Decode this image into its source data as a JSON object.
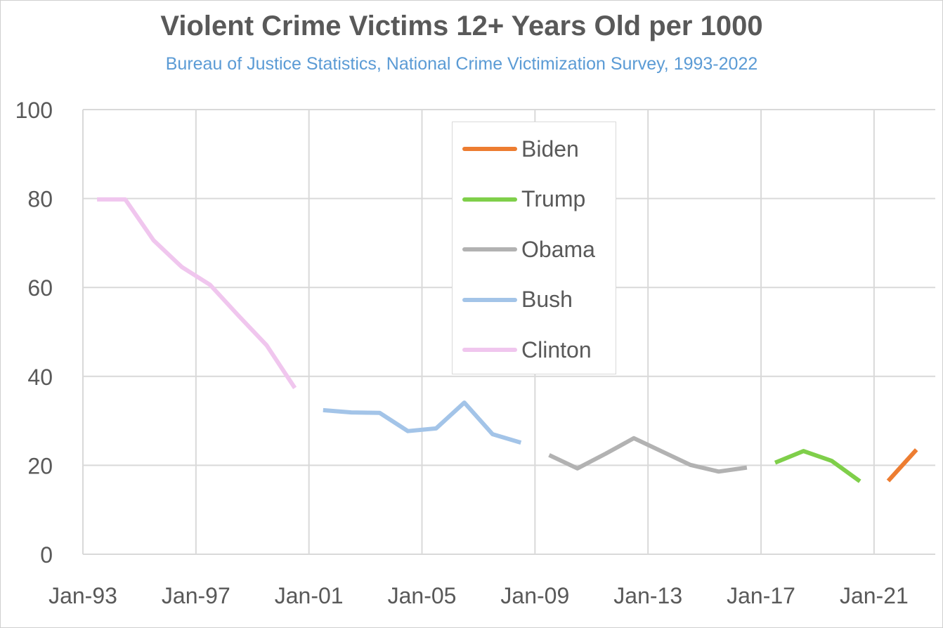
{
  "chart_data": {
    "type": "line",
    "title": "Violent Crime Victims 12+ Years Old per 1000",
    "subtitle": "Bureau of Justice Statistics, National Crime Victimization Survey, 1993-2022",
    "xlabel": "",
    "ylabel": "",
    "ylim": [
      0,
      100
    ],
    "yticks": [
      "0",
      "20",
      "40",
      "60",
      "80",
      "100"
    ],
    "xlim": [
      "Jan-93",
      "Mar-23"
    ],
    "xticks": [
      {
        "label": "Jan-93",
        "date": "1993-01"
      },
      {
        "label": "Jan-97",
        "date": "1997-01"
      },
      {
        "label": "Jan-01",
        "date": "2001-01"
      },
      {
        "label": "Jan-05",
        "date": "2005-01"
      },
      {
        "label": "Jan-09",
        "date": "2009-01"
      },
      {
        "label": "Jan-13",
        "date": "2013-01"
      },
      {
        "label": "Jan-17",
        "date": "2017-01"
      },
      {
        "label": "Jan-21",
        "date": "2021-01"
      }
    ],
    "grid": true,
    "legend_position": "top-center",
    "legend_order": [
      "Biden",
      "Trump",
      "Obama",
      "Bush",
      "Clinton"
    ],
    "series": [
      {
        "name": "Clinton",
        "color": "#f0c6ee",
        "points": [
          {
            "x": "1993-07",
            "y": 79.8
          },
          {
            "x": "1994-07",
            "y": 79.8
          },
          {
            "x": "1995-07",
            "y": 70.6
          },
          {
            "x": "1996-07",
            "y": 64.6
          },
          {
            "x": "1997-07",
            "y": 60.6
          },
          {
            "x": "1998-07",
            "y": 53.7
          },
          {
            "x": "1999-07",
            "y": 47.0
          },
          {
            "x": "2000-07",
            "y": 37.4
          }
        ]
      },
      {
        "name": "Bush",
        "color": "#a3c4e8",
        "points": [
          {
            "x": "2001-07",
            "y": 32.4
          },
          {
            "x": "2002-07",
            "y": 31.9
          },
          {
            "x": "2003-07",
            "y": 31.8
          },
          {
            "x": "2004-07",
            "y": 27.7
          },
          {
            "x": "2005-07",
            "y": 28.3
          },
          {
            "x": "2006-07",
            "y": 34.1
          },
          {
            "x": "2007-07",
            "y": 27.0
          },
          {
            "x": "2008-07",
            "y": 25.1
          }
        ]
      },
      {
        "name": "Obama",
        "color": "#b2b2b2",
        "points": [
          {
            "x": "2009-07",
            "y": 22.3
          },
          {
            "x": "2010-07",
            "y": 19.3
          },
          {
            "x": "2011-07",
            "y": 22.6
          },
          {
            "x": "2012-07",
            "y": 26.1
          },
          {
            "x": "2013-07",
            "y": 23.1
          },
          {
            "x": "2014-07",
            "y": 20.1
          },
          {
            "x": "2015-07",
            "y": 18.6
          },
          {
            "x": "2016-07",
            "y": 19.5
          }
        ]
      },
      {
        "name": "Trump",
        "color": "#7fcf4a",
        "points": [
          {
            "x": "2017-07",
            "y": 20.6
          },
          {
            "x": "2018-07",
            "y": 23.2
          },
          {
            "x": "2019-07",
            "y": 21.0
          },
          {
            "x": "2020-07",
            "y": 16.4
          }
        ]
      },
      {
        "name": "Biden",
        "color": "#ed7d31",
        "points": [
          {
            "x": "2021-07",
            "y": 16.5
          },
          {
            "x": "2022-07",
            "y": 23.5
          }
        ]
      }
    ]
  }
}
